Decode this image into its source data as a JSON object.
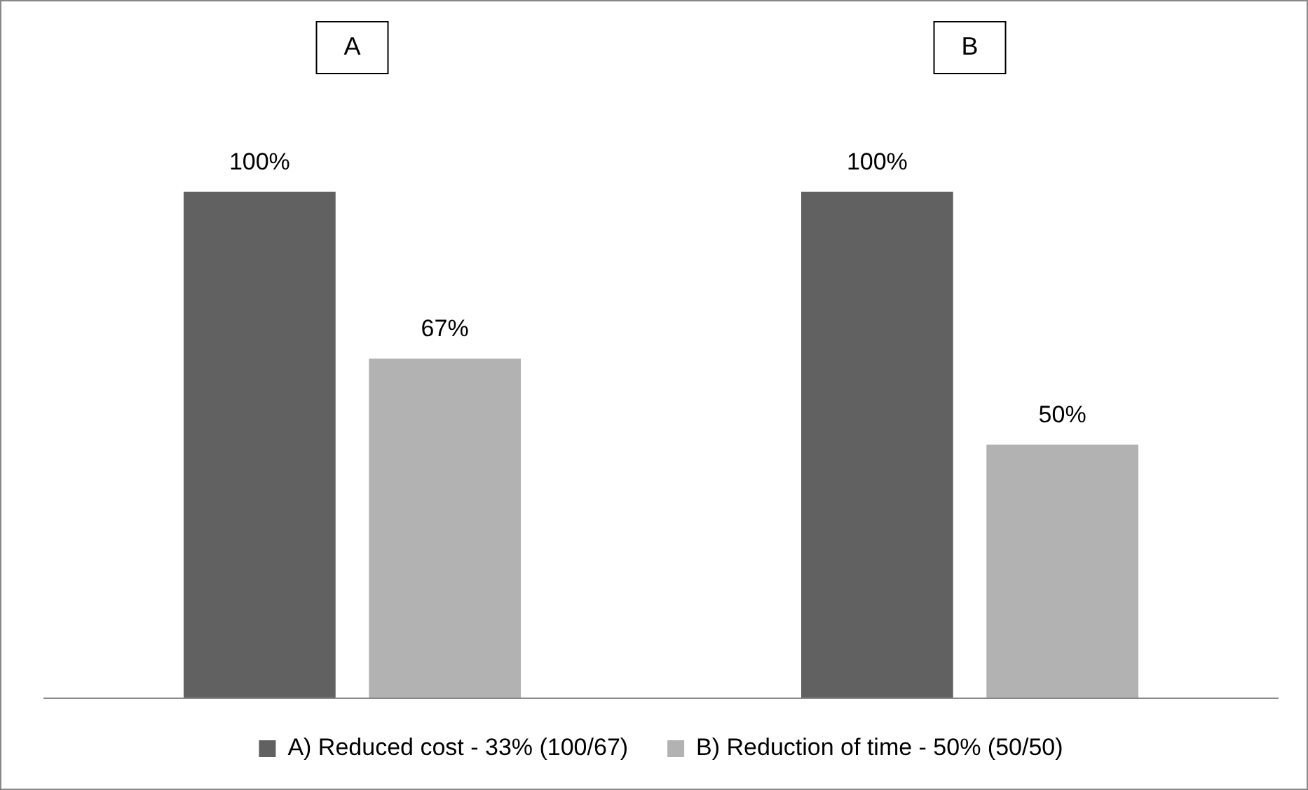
{
  "chart_data": {
    "type": "bar",
    "categories": [
      "A",
      "B"
    ],
    "series": [
      {
        "name": "A) Reduced cost - 33% (100/67)",
        "color": "#616161",
        "values": [
          100,
          100
        ],
        "value_labels": [
          "100%",
          "100%"
        ]
      },
      {
        "name": "B) Reduction of time - 50% (50/50)",
        "color": "#b2b2b2",
        "values": [
          67,
          50
        ],
        "value_labels": [
          "67%",
          "50%"
        ]
      }
    ],
    "legend": "bottom",
    "grid": false,
    "tick_labels": "x"
  }
}
